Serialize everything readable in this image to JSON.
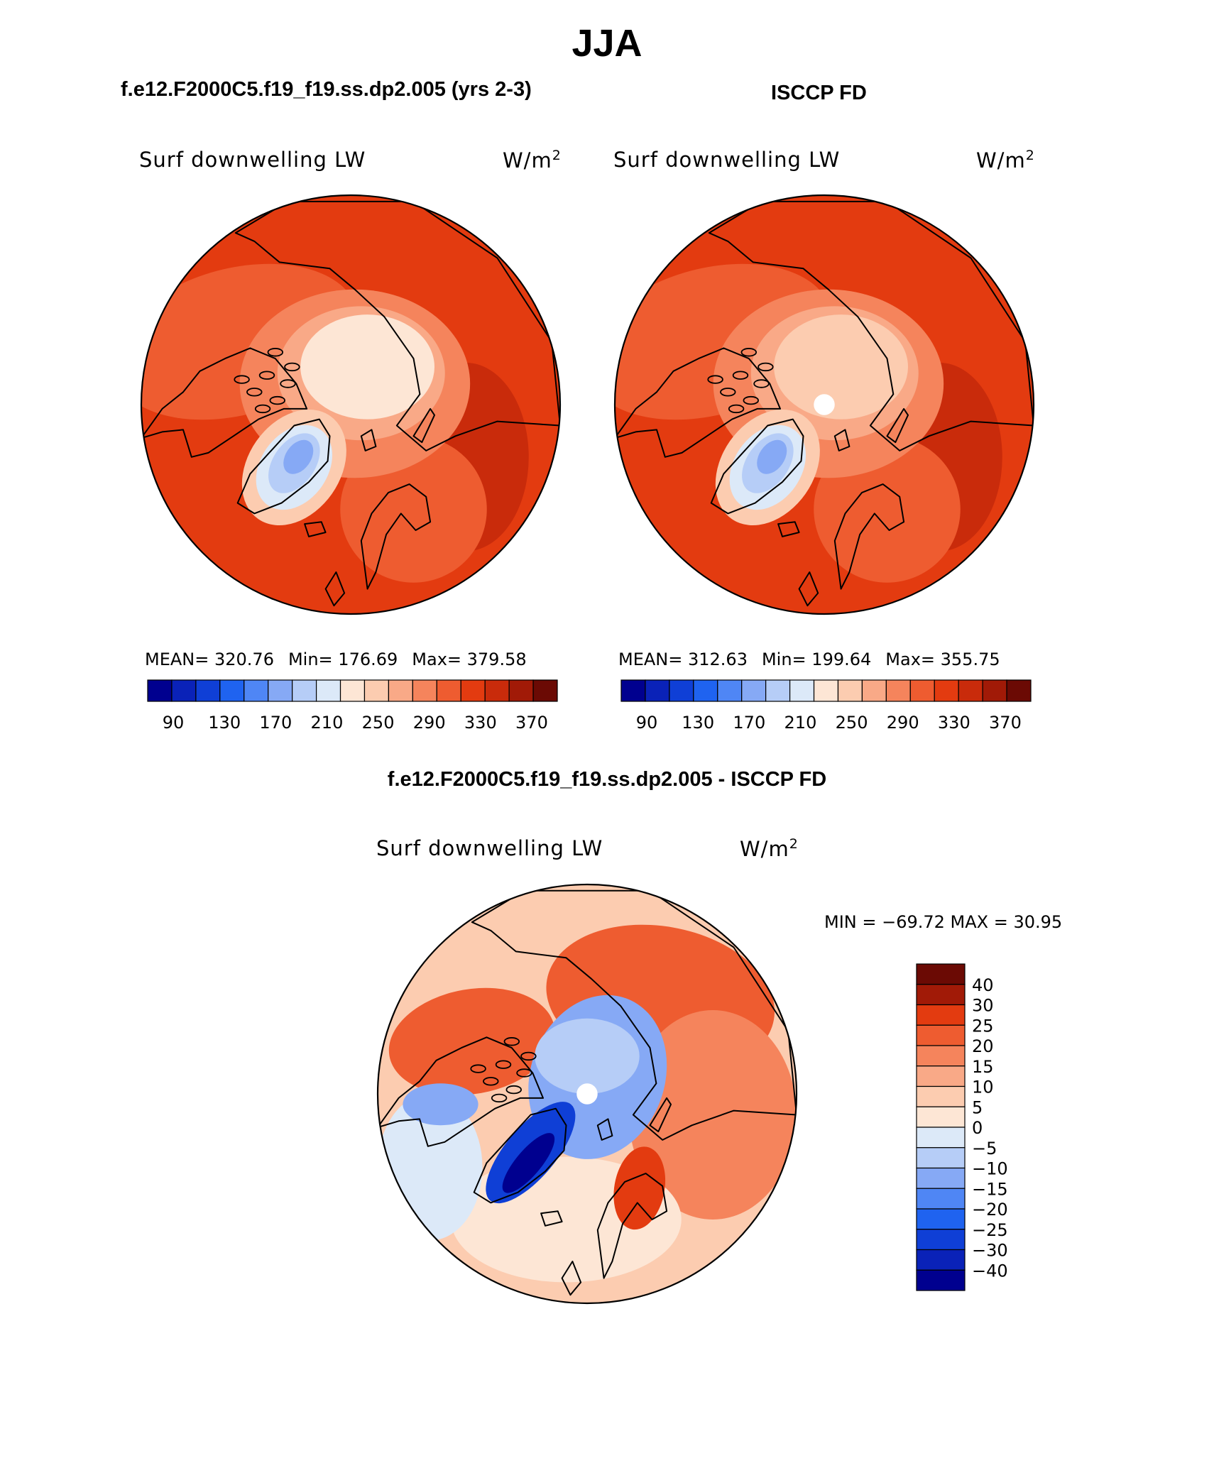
{
  "title": "JJA",
  "panels": [
    {
      "header": "f.e12.F2000C5.f19_f19.ss.dp2.005 (yrs 2-3)",
      "variable": "Surf downwelling LW",
      "units_base": "W/m",
      "units_exp": "2",
      "stats": {
        "mean": "MEAN= 320.76",
        "min": "Min= 176.69",
        "max": "Max= 379.58"
      }
    },
    {
      "header": "ISCCP FD",
      "variable": "Surf downwelling LW",
      "units_base": "W/m",
      "units_exp": "2",
      "stats": {
        "mean": "MEAN= 312.63",
        "min": "Min= 199.64",
        "max": "Max= 355.75"
      }
    },
    {
      "header": "f.e12.F2000C5.f19_f19.ss.dp2.005 - ISCCP FD",
      "variable": "Surf downwelling LW",
      "units_base": "W/m",
      "units_exp": "2",
      "stats": {
        "minmax": "MIN = −69.72 MAX =   30.95"
      }
    }
  ],
  "colors": {
    "seq": [
      "#00008f",
      "#0a22b8",
      "#0f3fd6",
      "#1f63f0",
      "#4f86f5",
      "#86a9f5",
      "#b6cdf7",
      "#dce9f8",
      "#fde6d5",
      "#fcccb0",
      "#f9a987",
      "#f5845c",
      "#ee5c30",
      "#e33b10",
      "#c92b0b",
      "#a11a07",
      "#6b0a04"
    ],
    "div": [
      "#00008f",
      "#0a22b8",
      "#0f3fd6",
      "#1f63f0",
      "#4f86f5",
      "#86a9f5",
      "#b6cdf7",
      "#dce9f8",
      "#fde6d5",
      "#fcccb0",
      "#f9a987",
      "#f5845c",
      "#ee5c30",
      "#e33b10",
      "#a11a07",
      "#6b0a04"
    ],
    "ice": "#fbd2b8",
    "outer": "#e24012"
  },
  "chart_data": [
    {
      "type": "heatmap",
      "projection": "north-polar-stereographic",
      "title": "f.e12.F2000C5.f19_f19.ss.dp2.005 (yrs 2-3)",
      "variable": "Surf downwelling LW",
      "units": "W/m2",
      "mean": 320.76,
      "min": 176.69,
      "max": 379.58,
      "colorbar_tick_labels": [
        "90",
        "130",
        "170",
        "210",
        "250",
        "290",
        "330",
        "370"
      ],
      "colorbar_tick_values": [
        90,
        130,
        170,
        210,
        250,
        290,
        330,
        370
      ],
      "colorbar_range": [
        70,
        390
      ]
    },
    {
      "type": "heatmap",
      "projection": "north-polar-stereographic",
      "title": "ISCCP FD",
      "variable": "Surf downwelling LW",
      "units": "W/m2",
      "mean": 312.63,
      "min": 199.64,
      "max": 355.75,
      "colorbar_tick_labels": [
        "90",
        "130",
        "170",
        "210",
        "250",
        "290",
        "330",
        "370"
      ],
      "colorbar_tick_values": [
        90,
        130,
        170,
        210,
        250,
        290,
        330,
        370
      ],
      "colorbar_range": [
        70,
        390
      ]
    },
    {
      "type": "heatmap",
      "projection": "north-polar-stereographic",
      "title": "f.e12.F2000C5.f19_f19.ss.dp2.005 - ISCCP FD",
      "variable": "Surf downwelling LW",
      "units": "W/m2",
      "min": -69.72,
      "max": 30.95,
      "colorbar_levels": [
        "40",
        "30",
        "25",
        "20",
        "15",
        "10",
        "5",
        "0",
        "−5",
        "−10",
        "−15",
        "−20",
        "−25",
        "−30",
        "−40"
      ],
      "colorbar_level_values": [
        40,
        30,
        25,
        20,
        15,
        10,
        5,
        0,
        -5,
        -10,
        -15,
        -20,
        -25,
        -30,
        -40
      ]
    }
  ]
}
